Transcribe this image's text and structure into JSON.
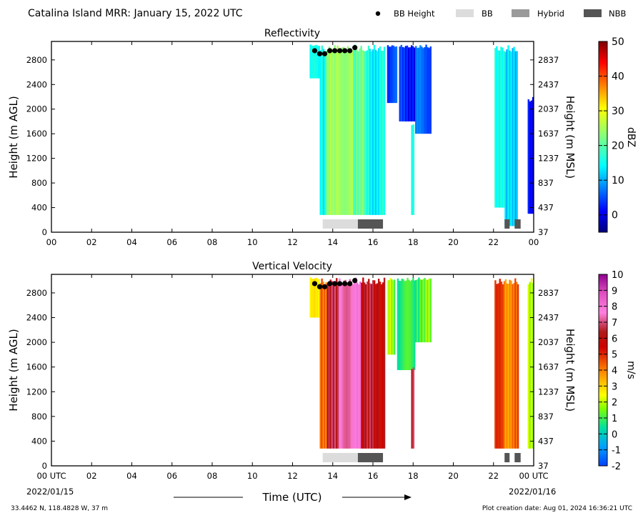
{
  "header": {
    "title": "Catalina Island MRR:  January 15, 2022 UTC",
    "legend": [
      {
        "label": "BB Height",
        "kind": "dot",
        "color": "#000000"
      },
      {
        "label": "BB",
        "kind": "swatch",
        "color": "#dcdcdc"
      },
      {
        "label": "Hybrid",
        "kind": "swatch",
        "color": "#9a9a9a"
      },
      {
        "label": "NBB",
        "kind": "swatch",
        "color": "#555555"
      }
    ]
  },
  "footer": {
    "coords": "33.4462 N, 118.4828 W, 37 m",
    "created": "Plot creation date: Aug 01, 2024 16:36:21 UTC",
    "time_label": "Time (UTC)",
    "date_start": "2022/01/15",
    "date_end": "2022/01/16"
  },
  "chart_data": [
    {
      "type": "heatmap",
      "title": "Reflectivity",
      "ylabel": "Height (m AGL)",
      "ylabel_right": "Height (m MSL)",
      "xlim": [
        0,
        24
      ],
      "ylim": [
        0,
        3100
      ],
      "x_ticks": [
        "00",
        "02",
        "04",
        "06",
        "08",
        "10",
        "12",
        "14",
        "16",
        "18",
        "20",
        "22",
        "00"
      ],
      "y_ticks": [
        0,
        400,
        800,
        1200,
        1600,
        2000,
        2400,
        2800
      ],
      "y_ticks_right": [
        37,
        437,
        837,
        1237,
        1637,
        2037,
        2437,
        2837
      ],
      "colorbar": {
        "label": "dBZ",
        "min": -5,
        "max": 50,
        "ticks": [
          0,
          10,
          20,
          30,
          40,
          50
        ],
        "scheme": "jet"
      },
      "segments": [
        {
          "x_start": 12.85,
          "x_end": 13.35,
          "y_bottom": 2500,
          "y_top": 3050,
          "value": 14
        },
        {
          "x_start": 13.35,
          "x_end": 13.65,
          "y_bottom": 280,
          "y_top": 3050,
          "value": 16
        },
        {
          "x_start": 13.65,
          "x_end": 14.2,
          "y_bottom": 280,
          "y_top": 3050,
          "value": 23
        },
        {
          "x_start": 14.2,
          "x_end": 15.0,
          "y_bottom": 280,
          "y_top": 3050,
          "value": 25
        },
        {
          "x_start": 15.0,
          "x_end": 15.6,
          "y_bottom": 280,
          "y_top": 3050,
          "value": 20
        },
        {
          "x_start": 15.6,
          "x_end": 16.6,
          "y_bottom": 280,
          "y_top": 3050,
          "value": 15
        },
        {
          "x_start": 16.7,
          "x_end": 17.2,
          "y_bottom": 2100,
          "y_top": 3050,
          "value": 5
        },
        {
          "x_start": 17.3,
          "x_end": 18.1,
          "y_bottom": 1800,
          "y_top": 3050,
          "value": 3
        },
        {
          "x_start": 17.9,
          "x_end": 18.05,
          "y_bottom": 280,
          "y_top": 1800,
          "value": 18
        },
        {
          "x_start": 18.1,
          "x_end": 18.9,
          "y_bottom": 1600,
          "y_top": 3050,
          "value": 6
        },
        {
          "x_start": 22.05,
          "x_end": 22.55,
          "y_bottom": 400,
          "y_top": 3050,
          "value": 17
        },
        {
          "x_start": 22.55,
          "x_end": 23.2,
          "y_bottom": 100,
          "y_top": 3050,
          "value": 11
        },
        {
          "x_start": 23.7,
          "x_end": 24.0,
          "y_bottom": 300,
          "y_top": 2200,
          "value": 2
        }
      ],
      "bb_height": {
        "x": [
          13.1,
          13.35,
          13.6,
          13.85,
          14.1,
          14.35,
          14.6,
          14.85,
          15.1
        ],
        "y": [
          2950,
          2900,
          2900,
          2950,
          2950,
          2950,
          2950,
          2950,
          3000
        ]
      },
      "bb_types": [
        {
          "x_start": 13.5,
          "x_end": 15.25,
          "type": "BB"
        },
        {
          "x_start": 15.25,
          "x_end": 16.5,
          "type": "NBB"
        },
        {
          "x_start": 22.55,
          "x_end": 22.8,
          "type": "NBB"
        },
        {
          "x_start": 23.05,
          "x_end": 23.35,
          "type": "NBB"
        }
      ]
    },
    {
      "type": "heatmap",
      "title": "Vertical Velocity",
      "ylabel": "Height (m AGL)",
      "ylabel_right": "Height (m MSL)",
      "xlim": [
        0,
        24
      ],
      "ylim": [
        0,
        3100
      ],
      "x_ticks": [
        "00 UTC",
        "02",
        "04",
        "06",
        "08",
        "10",
        "12",
        "14",
        "16",
        "18",
        "20",
        "22",
        "00 UTC"
      ],
      "y_ticks": [
        0,
        400,
        800,
        1200,
        1600,
        2000,
        2400,
        2800
      ],
      "y_ticks_right": [
        37,
        437,
        837,
        1237,
        1637,
        2037,
        2437,
        2837
      ],
      "colorbar": {
        "label": "m/s",
        "min": -2,
        "max": 10,
        "ticks": [
          -2,
          -1,
          0,
          1,
          2,
          3,
          4,
          5,
          6,
          7,
          8,
          9,
          10
        ],
        "scheme": "velocity"
      },
      "segments": [
        {
          "x_start": 12.85,
          "x_end": 13.35,
          "y_bottom": 2400,
          "y_top": 3050,
          "value": 2.4
        },
        {
          "x_start": 13.35,
          "x_end": 13.7,
          "y_bottom": 280,
          "y_top": 3050,
          "value": 4.5
        },
        {
          "x_start": 13.7,
          "x_end": 14.3,
          "y_bottom": 280,
          "y_top": 3050,
          "value": 6.3
        },
        {
          "x_start": 14.3,
          "x_end": 15.4,
          "y_bottom": 280,
          "y_top": 3050,
          "value": 7.5
        },
        {
          "x_start": 15.4,
          "x_end": 16.6,
          "y_bottom": 280,
          "y_top": 3050,
          "value": 6.1
        },
        {
          "x_start": 16.7,
          "x_end": 17.1,
          "y_bottom": 1800,
          "y_top": 3050,
          "value": 1.8
        },
        {
          "x_start": 17.2,
          "x_end": 18.1,
          "y_bottom": 1550,
          "y_top": 3050,
          "value": 0.8
        },
        {
          "x_start": 17.9,
          "x_end": 18.05,
          "y_bottom": 280,
          "y_top": 1600,
          "value": 6.2
        },
        {
          "x_start": 18.1,
          "x_end": 18.9,
          "y_bottom": 2000,
          "y_top": 3050,
          "value": 1.3
        },
        {
          "x_start": 22.05,
          "x_end": 22.5,
          "y_bottom": 280,
          "y_top": 3050,
          "value": 4.6
        },
        {
          "x_start": 22.5,
          "x_end": 23.25,
          "y_bottom": 280,
          "y_top": 3050,
          "value": 4.1
        },
        {
          "x_start": 23.7,
          "x_end": 24.0,
          "y_bottom": 280,
          "y_top": 3050,
          "value": 1.7
        }
      ],
      "bb_height": {
        "x": [
          13.1,
          13.35,
          13.6,
          13.85,
          14.1,
          14.35,
          14.6,
          14.85,
          15.1
        ],
        "y": [
          2950,
          2900,
          2900,
          2950,
          2950,
          2950,
          2950,
          2950,
          3000
        ]
      },
      "bb_types": [
        {
          "x_start": 13.5,
          "x_end": 15.25,
          "type": "BB"
        },
        {
          "x_start": 15.25,
          "x_end": 16.5,
          "type": "NBB"
        },
        {
          "x_start": 22.55,
          "x_end": 22.8,
          "type": "NBB"
        },
        {
          "x_start": 23.05,
          "x_end": 23.35,
          "type": "NBB"
        }
      ]
    }
  ]
}
